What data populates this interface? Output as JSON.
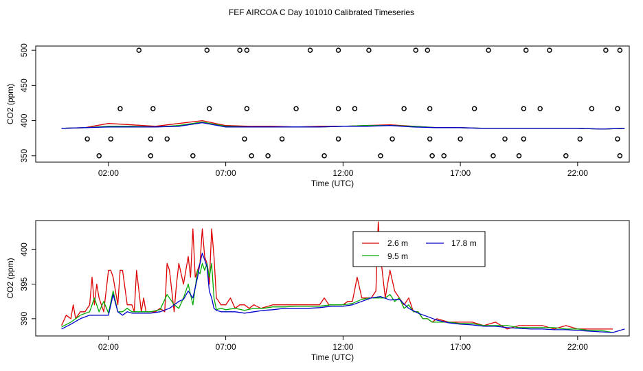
{
  "title": "FEF AIRCOA C  Day 101010  Calibrated Timeseries",
  "colors": {
    "red": "#dd0000",
    "green": "#00aa00",
    "blue": "#0000cc",
    "axis": "#000000"
  },
  "chart_data": [
    {
      "type": "scatter+line",
      "xlabel": "Time (UTC)",
      "ylabel": "CO2 (ppm)",
      "xlim": [
        -1.1,
        24.2
      ],
      "ylim": [
        341,
        506
      ],
      "xticks": [
        2,
        7,
        12,
        17,
        22
      ],
      "xtick_labels": [
        "02:00",
        "07:00",
        "12:00",
        "17:00",
        "22:00"
      ],
      "yticks": [
        350,
        400,
        450,
        500
      ],
      "ytick_labels": [
        "350",
        "400",
        "450",
        "500"
      ],
      "calibration_points": {
        "x": [
          1.6,
          1.1,
          2.1,
          2.5,
          3.3,
          3.8,
          3.8,
          3.9,
          4.5,
          5.6,
          6.2,
          6.3,
          7.6,
          7.8,
          7.9,
          7.9,
          8.1,
          8.8,
          9.4,
          10.0,
          10.6,
          11.2,
          11.8,
          11.8,
          11.8,
          12.5,
          13.1,
          13.6,
          14.1,
          14.6,
          15.1,
          15.6,
          15.7,
          15.7,
          15.8,
          16.3,
          17.0,
          17.6,
          18.2,
          18.4,
          18.9,
          19.5,
          19.7,
          19.7,
          19.8,
          20.4,
          20.8,
          21.5,
          22.1,
          22.6,
          23.2,
          23.7,
          23.7,
          23.8,
          23.8
        ],
        "y": [
          350,
          374,
          374,
          417,
          500,
          350,
          374,
          417,
          374,
          350,
          500,
          417,
          500,
          374,
          500,
          417,
          350,
          350,
          374,
          417,
          500,
          350,
          374,
          417,
          500,
          417,
          500,
          350,
          374,
          417,
          500,
          500,
          417,
          374,
          350,
          350,
          374,
          417,
          500,
          350,
          374,
          350,
          374,
          417,
          500,
          417,
          500,
          350,
          374,
          417,
          500,
          374,
          417,
          500,
          350
        ]
      },
      "series": [
        {
          "name": "2.6 m",
          "color": "red",
          "x": [
            0,
            1,
            2,
            3,
            4,
            5,
            6,
            7,
            8,
            9,
            10,
            11,
            12,
            13,
            14,
            15,
            16,
            17,
            18,
            19,
            20,
            21,
            22,
            23,
            24
          ],
          "y": [
            389,
            390,
            396,
            394,
            392,
            396,
            400,
            393,
            392,
            392,
            391,
            392,
            392,
            393,
            394,
            392,
            390,
            390,
            389,
            389,
            389,
            389,
            389,
            388,
            389
          ]
        },
        {
          "name": "9.5 m",
          "color": "green",
          "x": [
            0,
            1,
            2,
            3,
            4,
            5,
            6,
            7,
            8,
            9,
            10,
            11,
            12,
            13,
            14,
            15,
            16,
            17,
            18,
            19,
            20,
            21,
            22,
            23,
            24
          ],
          "y": [
            389,
            390,
            392,
            392,
            391,
            393,
            398,
            392,
            391,
            391,
            391,
            391,
            392,
            393,
            393,
            392,
            390,
            390,
            389,
            389,
            389,
            389,
            389,
            388,
            389
          ]
        },
        {
          "name": "17.8 m",
          "color": "blue",
          "x": [
            0,
            1,
            2,
            3,
            4,
            5,
            6,
            7,
            8,
            9,
            10,
            11,
            12,
            13,
            14,
            15,
            16,
            17,
            18,
            19,
            20,
            21,
            22,
            23,
            24
          ],
          "y": [
            389,
            390,
            391,
            391,
            391,
            392,
            397,
            391,
            391,
            391,
            391,
            391,
            392,
            392,
            393,
            391,
            390,
            390,
            389,
            389,
            389,
            389,
            389,
            388,
            389
          ]
        }
      ]
    },
    {
      "type": "line",
      "xlabel": "Time (UTC)",
      "ylabel": "CO2 (ppm)",
      "xlim": [
        -1.1,
        24.2
      ],
      "ylim": [
        387.5,
        404.2
      ],
      "xticks": [
        2,
        7,
        12,
        17,
        22
      ],
      "xtick_labels": [
        "02:00",
        "07:00",
        "12:00",
        "17:00",
        "22:00"
      ],
      "yticks": [
        390,
        395,
        400
      ],
      "ytick_labels": [
        "390",
        "395",
        "400"
      ],
      "legend_position": "top-right",
      "series": [
        {
          "name": "2.6 m",
          "color": "red",
          "x": [
            0,
            0.2,
            0.4,
            0.5,
            0.6,
            0.8,
            1,
            1.2,
            1.3,
            1.4,
            1.5,
            1.6,
            1.7,
            1.8,
            2.0,
            2.1,
            2.2,
            2.4,
            2.5,
            2.6,
            2.8,
            3.0,
            3.1,
            3.2,
            3.4,
            3.5,
            3.6,
            3.7,
            3.8,
            4.0,
            4.2,
            4.4,
            4.5,
            4.6,
            4.8,
            4.9,
            5.0,
            5.2,
            5.4,
            5.5,
            5.6,
            5.7,
            5.8,
            5.9,
            6.0,
            6.1,
            6.2,
            6.3,
            6.4,
            6.5,
            6.6,
            6.8,
            7.0,
            7.2,
            7.4,
            7.6,
            7.8,
            8.0,
            8.2,
            8.5,
            9,
            9.5,
            10,
            10.5,
            11,
            11.2,
            11.4,
            11.6,
            11.8,
            12,
            12.2,
            12.4,
            12.6,
            12.8,
            13.0,
            13.2,
            13.4,
            13.5,
            13.6,
            13.7,
            13.8,
            14.0,
            14.2,
            14.4,
            14.6,
            14.8,
            15.0,
            15.2,
            15.4,
            15.6,
            15.8,
            16,
            16.5,
            17,
            17.5,
            18,
            18.5,
            19,
            19.5,
            20,
            20.5,
            21,
            21.5,
            22,
            22.5,
            23,
            23.5
          ],
          "y": [
            389,
            390.5,
            390,
            392,
            390,
            391,
            391,
            392,
            396,
            392,
            395,
            393,
            392,
            391,
            397,
            397,
            396,
            392,
            397,
            397,
            392,
            392,
            391,
            397,
            391,
            393,
            391,
            391,
            391,
            391,
            391.5,
            391,
            398,
            397,
            391,
            395,
            398,
            395,
            399,
            396,
            403,
            396,
            397,
            398,
            403,
            399,
            398,
            395,
            403,
            399,
            393,
            392,
            392,
            393,
            391.5,
            392,
            392,
            391.5,
            392,
            391.5,
            392,
            392,
            392,
            392,
            392,
            393,
            392,
            392,
            392,
            392,
            392.5,
            392.5,
            396,
            393,
            393,
            393,
            394,
            404,
            399,
            396,
            393,
            397,
            394,
            393,
            392,
            393,
            391,
            391,
            390,
            390,
            389.5,
            390,
            389.5,
            389.5,
            389.5,
            389,
            389.5,
            388.5,
            389,
            389,
            389,
            388.5,
            389,
            388.5,
            388.5,
            388.5,
            388.5
          ]
        },
        {
          "name": "9.5 m",
          "color": "green",
          "x": [
            0,
            0.4,
            0.8,
            1.2,
            1.4,
            1.6,
            1.8,
            2.0,
            2.2,
            2.4,
            2.6,
            2.8,
            3.0,
            3.4,
            3.8,
            4.2,
            4.5,
            4.8,
            5.0,
            5.2,
            5.4,
            5.6,
            5.8,
            5.9,
            6.0,
            6.1,
            6.2,
            6.3,
            6.4,
            6.5,
            6.6,
            6.8,
            7.0,
            7.4,
            7.8,
            8.2,
            8.6,
            9,
            9.5,
            10,
            10.5,
            11,
            11.5,
            12,
            12.4,
            12.8,
            13.2,
            13.4,
            13.6,
            13.8,
            14.0,
            14.2,
            14.4,
            14.6,
            14.8,
            15.0,
            15.2,
            15.4,
            15.6,
            15.8,
            16,
            16.5,
            17,
            17.5,
            18,
            18.5,
            19,
            19.5,
            20,
            20.5,
            21,
            21.5,
            22,
            22.5,
            23,
            23.5
          ],
          "y": [
            388.8,
            389.5,
            390.5,
            391,
            393,
            391,
            392.5,
            390.8,
            394,
            391,
            391,
            391.5,
            391,
            391,
            391,
            391.3,
            393.5,
            392,
            391.5,
            393,
            395,
            392,
            397,
            396.5,
            398,
            397,
            398,
            396,
            398,
            393,
            391.3,
            391.5,
            391.3,
            391.5,
            391.2,
            391.5,
            391.5,
            391.7,
            391.7,
            391.8,
            391.8,
            391.8,
            392,
            392,
            392.2,
            392.8,
            393,
            393,
            393,
            393,
            393.5,
            392.5,
            393,
            391.5,
            392,
            391,
            391,
            390,
            390,
            389.5,
            389.5,
            389.5,
            389.3,
            389.3,
            389,
            389,
            389,
            388.7,
            388.7,
            388.7,
            388.7,
            388.5,
            388.5,
            388.3,
            388.3,
            388
          ]
        },
        {
          "name": "17.8 m",
          "color": "blue",
          "x": [
            0,
            0.4,
            0.8,
            1.2,
            1.6,
            2.0,
            2.2,
            2.4,
            2.6,
            2.8,
            3.0,
            3.4,
            3.8,
            4.2,
            4.6,
            5.0,
            5.2,
            5.4,
            5.6,
            5.8,
            5.9,
            6.0,
            6.1,
            6.2,
            6.3,
            6.4,
            6.5,
            6.6,
            6.8,
            7.0,
            7.4,
            7.8,
            8.2,
            8.6,
            9,
            9.5,
            10,
            10.5,
            11,
            11.5,
            12,
            12.4,
            12.8,
            13.2,
            13.6,
            14.0,
            14.4,
            14.8,
            15.2,
            15.6,
            16,
            16.5,
            17,
            17.5,
            18,
            18.5,
            19,
            19.5,
            20,
            20.5,
            21,
            21.5,
            22,
            22.5,
            23,
            23.5,
            24
          ],
          "y": [
            388.5,
            389.2,
            390,
            390.5,
            390.5,
            390.5,
            393.5,
            391,
            390.5,
            391,
            390.8,
            390.8,
            390.8,
            391,
            391.5,
            392.5,
            392.8,
            394,
            393,
            396,
            398,
            399.5,
            398.5,
            397.5,
            394,
            393,
            391.5,
            391.2,
            391,
            391,
            391,
            390.8,
            391,
            391.2,
            391.3,
            391.5,
            391.5,
            391.5,
            391.6,
            391.8,
            391.8,
            392,
            392.5,
            393,
            393.2,
            392.7,
            392.8,
            391.5,
            390.8,
            390.3,
            389.8,
            389.4,
            389.2,
            389.1,
            388.9,
            388.9,
            388.7,
            388.6,
            388.5,
            388.5,
            388.4,
            388.4,
            388.3,
            388.2,
            388.1,
            388,
            388.5
          ]
        }
      ]
    }
  ]
}
